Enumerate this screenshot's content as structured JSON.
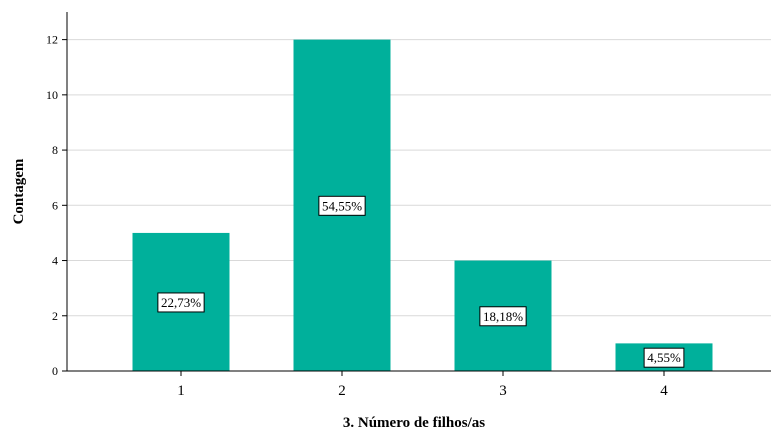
{
  "chart_data": {
    "type": "bar",
    "categories": [
      "1",
      "2",
      "3",
      "4"
    ],
    "values": [
      5,
      12,
      4,
      1
    ],
    "data_labels": [
      "22,73%",
      "54,55%",
      "18,18%",
      "4,55%"
    ],
    "xlabel": "3. Número de filhos/as",
    "ylabel": "Contagem",
    "ylim": [
      0,
      13
    ],
    "yticks": [
      0,
      2,
      4,
      6,
      8,
      10,
      12
    ],
    "grid": true,
    "bar_color": "#00b09b",
    "legend": "none"
  }
}
